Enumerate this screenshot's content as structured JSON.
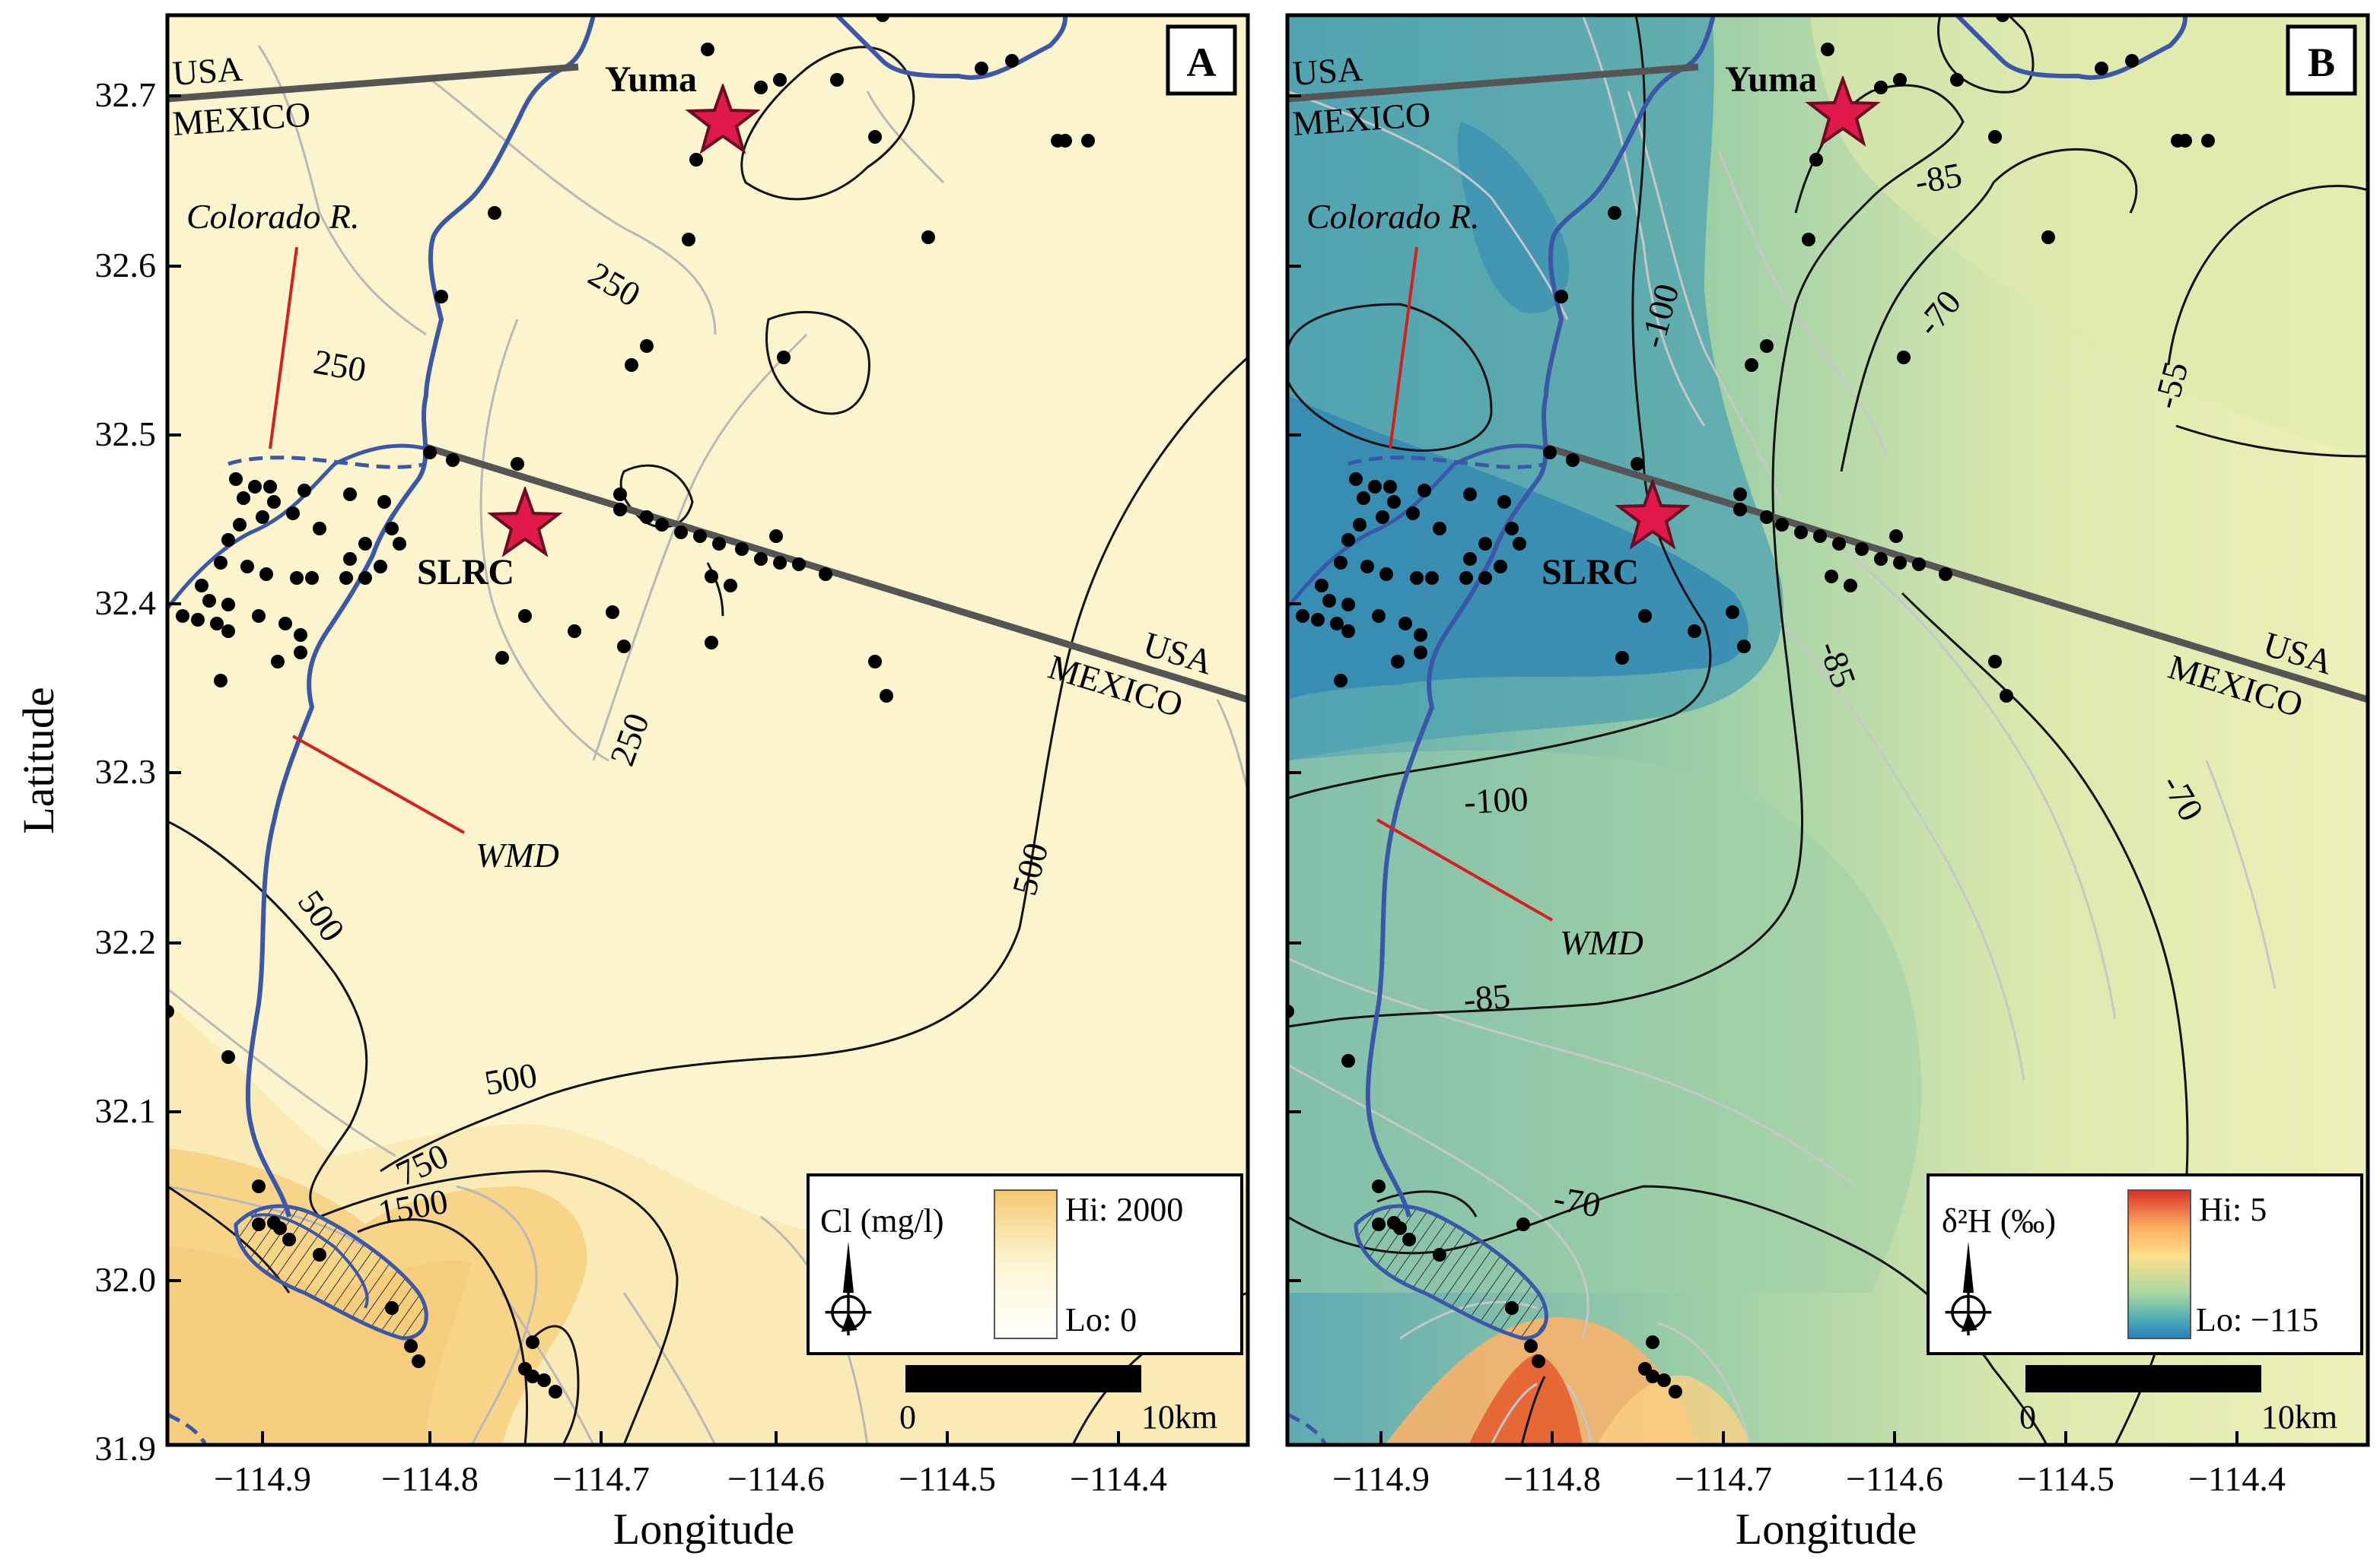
{
  "figure": {
    "y_axis_title": "Latitude",
    "x_axis_title": "Longitude",
    "latitude_ticks": [
      "32.7",
      "32.6",
      "32.5",
      "32.4",
      "32.3",
      "32.2",
      "32.1",
      "32.0",
      "31.9"
    ],
    "longitude_ticks": [
      "−114.9",
      "−114.8",
      "−114.7",
      "−114.6",
      "−114.5",
      "−114.4"
    ]
  },
  "panels": [
    {
      "letter": "A",
      "border_labels": {
        "usa_north": "USA",
        "mexico_north": "MEXICO",
        "usa_east": "USA",
        "mexico_east": "MEXICO"
      },
      "features": {
        "city_yuma": "Yuma",
        "city_slrc": "SLRC",
        "river": "Colorado R.",
        "wmd": "WMD"
      },
      "contour_labels": [
        "250",
        "250",
        "250",
        "500",
        "500",
        "500",
        "750",
        "1500"
      ],
      "legend": {
        "variable": "Cl (mg/l)",
        "hi": "Hi: 2000",
        "lo": "Lo: 0",
        "colors": [
          "#f5c870",
          "#fdf6d3",
          "#ffffff"
        ]
      },
      "scale_bar": {
        "start": "0",
        "end": "10km"
      },
      "colors": {
        "background": "#fcf4cc",
        "accent_high": "#f5c167",
        "river": "#3a57a8",
        "star": "#e0194a"
      }
    },
    {
      "letter": "B",
      "border_labels": {
        "usa_north": "USA",
        "mexico_north": "MEXICO",
        "usa_east": "USA",
        "mexico_east": "MEXICO"
      },
      "features": {
        "city_yuma": "Yuma",
        "city_slrc": "SLRC",
        "river": "Colorado R.",
        "wmd": "WMD"
      },
      "contour_labels": [
        "-100",
        "-85",
        "-70",
        "-55",
        "-85",
        "-100",
        "-85",
        "-70",
        "-70"
      ],
      "legend": {
        "variable": "δ²H (‰)",
        "hi": "Hi: 5",
        "lo": "Lo: −115",
        "colors": [
          "#d73027",
          "#fdae61",
          "#fee08b",
          "#a6d7a0",
          "#4aa8b8",
          "#2c7fb8"
        ]
      },
      "scale_bar": {
        "start": "0",
        "end": "10km"
      },
      "colors": {
        "background": "#e4ebb0",
        "low": "#3b92b5",
        "high": "#e8622f",
        "river": "#3a57a8",
        "star": "#e0194a"
      }
    }
  ]
}
